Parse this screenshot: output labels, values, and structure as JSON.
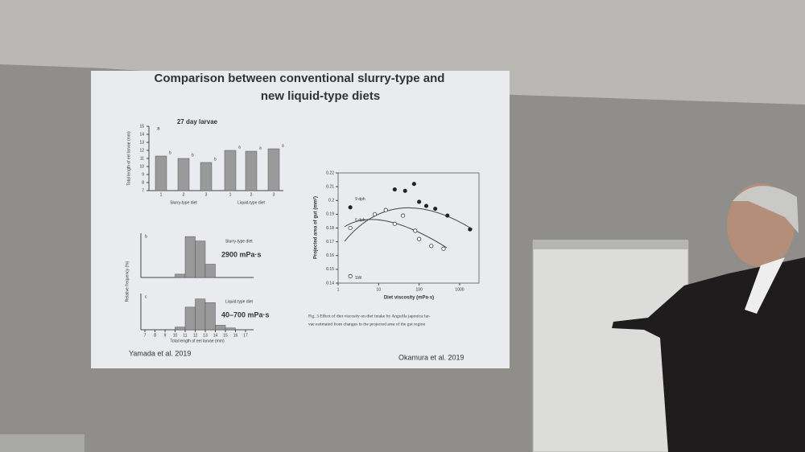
{
  "slide": {
    "title_lines": [
      "Comparison between conventional slurry-type and",
      "new liquid-type diets"
    ],
    "left_credit": "Yamada et al. 2019",
    "right_credit": "Okamura et al. 2019",
    "bar_chart": {
      "type": "bar",
      "panel": "a",
      "title": "27 day larvae",
      "y_label": "Total length of eel larvae (mm)",
      "categories": [
        "1",
        "2",
        "3",
        "1",
        "2",
        "3"
      ],
      "values": [
        11.3,
        11,
        10.5,
        12,
        11.9,
        12.2
      ],
      "letters": [
        "b",
        "b",
        "b",
        "a",
        "a",
        "a"
      ],
      "groups": [
        "Slurry-type diet",
        "Liquid-type diet"
      ],
      "ylim": [
        7,
        15
      ],
      "yticks": [
        7,
        8,
        9,
        10,
        11,
        12,
        13,
        14,
        15
      ],
      "color": "#9a9a9a"
    },
    "histograms": {
      "type": "histogram",
      "y_label": "Relative frequency (%)",
      "x_label": "Total length of eel larvae (mm)",
      "bins": [
        7,
        8,
        9,
        10,
        11,
        12,
        13,
        14,
        15,
        16,
        17
      ],
      "xticks": [
        7,
        8,
        9,
        10,
        11,
        12,
        13,
        14,
        15,
        16,
        17
      ],
      "ylim": [
        0,
        40
      ],
      "color": "#9a9a9a",
      "panels": [
        {
          "panel": "b",
          "diet": "Slurry-type diet",
          "viscosity": "2900 mPa·s",
          "counts": [
            0,
            0,
            0,
            3,
            37,
            33,
            12,
            0,
            0,
            0
          ]
        },
        {
          "panel": "c",
          "diet": "Liquid-type diet",
          "viscosity": "40–700 mPa·s",
          "counts": [
            0,
            0,
            0,
            3,
            25,
            34,
            30,
            5,
            2,
            0
          ]
        }
      ]
    },
    "scatter": {
      "type": "scatter",
      "x_label": "Diet viscosity (mPa·s)",
      "y_label": "Projected area of gut (mm²)",
      "xlim": [
        1,
        3000
      ],
      "log_x": true,
      "xticks": [
        1,
        10,
        100,
        1000
      ],
      "ylim": [
        0.14,
        0.22
      ],
      "yticks": [
        0.14,
        0.15,
        0.16,
        0.17,
        0.18,
        0.19,
        0.2,
        0.21,
        0.22
      ],
      "series": [
        {
          "name": "9 dph",
          "filled": true,
          "x": [
            2,
            25,
            45,
            75,
            100,
            150,
            250,
            500,
            1800
          ],
          "values": [
            0.195,
            0.208,
            0.207,
            0.212,
            0.199,
            0.196,
            0.194,
            0.189,
            0.179
          ]
        },
        {
          "name": "6 dph",
          "filled": false,
          "x": [
            2,
            8,
            15,
            25,
            40,
            80,
            100,
            200,
            400
          ],
          "values": [
            0.18,
            0.19,
            0.193,
            0.183,
            0.189,
            0.178,
            0.172,
            0.167,
            0.165
          ]
        },
        {
          "name": "SW",
          "filled": false,
          "x": [
            2
          ],
          "values": [
            0.145
          ]
        }
      ],
      "caption_lines": [
        "Fig. 3  Effect of diet viscosity on diet intake by Anguilla japonica lar-",
        "vae estimated from changes in the projected area of the gut region"
      ]
    }
  }
}
